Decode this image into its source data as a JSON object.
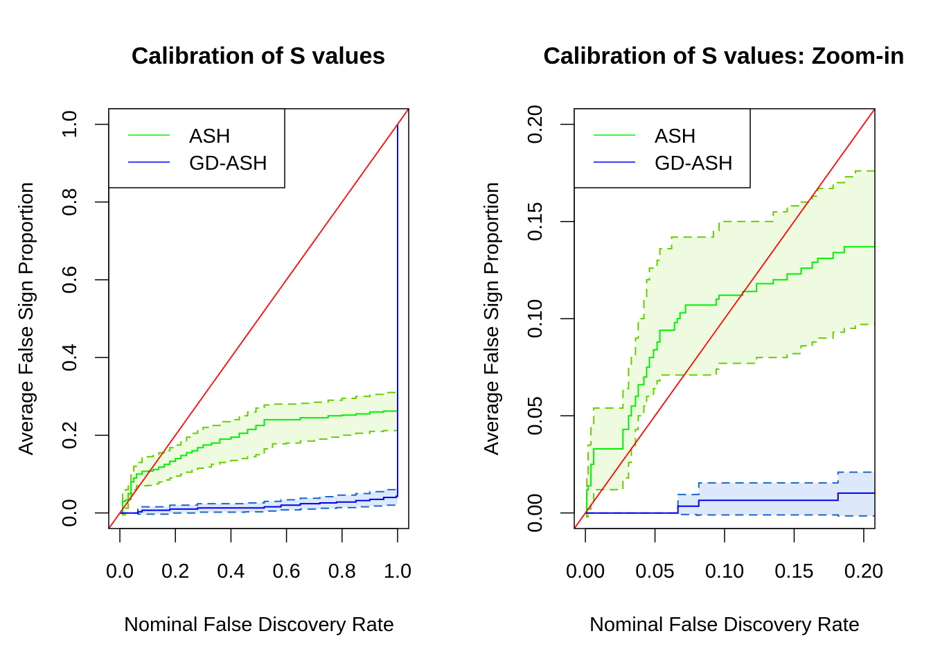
{
  "chart_data": [
    {
      "type": "line",
      "title": "Calibration of S values",
      "xlabel": "Nominal False Discovery Rate",
      "ylabel": "Average False Sign Proportion",
      "xlim": [
        -0.04,
        1.04
      ],
      "ylim": [
        -0.04,
        1.04
      ],
      "xticks": [
        0.0,
        0.2,
        0.4,
        0.6,
        0.8,
        1.0
      ],
      "xtick_labels": [
        "0.0",
        "0.2",
        "0.4",
        "0.6",
        "0.8",
        "1.0"
      ],
      "yticks": [
        0.0,
        0.2,
        0.4,
        0.6,
        0.8,
        1.0
      ],
      "ytick_labels": [
        "0.0",
        "0.2",
        "0.4",
        "0.6",
        "0.8",
        "1.0"
      ],
      "grid": false,
      "legend": {
        "position": "top-left",
        "entries": [
          {
            "label": "ASH",
            "color": "#00ee00"
          },
          {
            "label": "GD-ASH",
            "color": "#0000ee"
          }
        ]
      },
      "reference_line": {
        "label": "y = x",
        "color": "#ff0000"
      },
      "series": [
        {
          "name": "ASH",
          "color": "#00ee00",
          "band_color": "#66cc00",
          "fill_color": "#eefbe0",
          "x": [
            0.0,
            0.01,
            0.02,
            0.03,
            0.04,
            0.05,
            0.06,
            0.08,
            0.1,
            0.12,
            0.14,
            0.16,
            0.18,
            0.2,
            0.22,
            0.24,
            0.26,
            0.28,
            0.3,
            0.33,
            0.36,
            0.4,
            0.43,
            0.46,
            0.49,
            0.52,
            0.55,
            0.6,
            0.65,
            0.7,
            0.75,
            0.8,
            0.85,
            0.9,
            0.95,
            1.0
          ],
          "mean": [
            0.0,
            0.03,
            0.033,
            0.05,
            0.08,
            0.09,
            0.1,
            0.107,
            0.108,
            0.112,
            0.118,
            0.125,
            0.133,
            0.14,
            0.148,
            0.155,
            0.16,
            0.168,
            0.175,
            0.18,
            0.19,
            0.195,
            0.205,
            0.215,
            0.225,
            0.24,
            0.24,
            0.24,
            0.245,
            0.245,
            0.25,
            0.252,
            0.255,
            0.26,
            0.262,
            0.262
          ],
          "lower": [
            0.0,
            -0.005,
            0.012,
            0.025,
            0.05,
            0.06,
            0.07,
            0.07,
            0.071,
            0.075,
            0.08,
            0.085,
            0.09,
            0.095,
            0.1,
            0.105,
            0.11,
            0.115,
            0.118,
            0.125,
            0.13,
            0.135,
            0.14,
            0.145,
            0.15,
            0.165,
            0.178,
            0.18,
            0.185,
            0.19,
            0.195,
            0.2,
            0.205,
            0.21,
            0.212,
            0.212
          ],
          "upper": [
            0.0,
            0.055,
            0.06,
            0.08,
            0.1,
            0.12,
            0.13,
            0.142,
            0.145,
            0.15,
            0.155,
            0.16,
            0.168,
            0.175,
            0.185,
            0.195,
            0.205,
            0.215,
            0.22,
            0.225,
            0.235,
            0.24,
            0.25,
            0.26,
            0.27,
            0.278,
            0.28,
            0.28,
            0.282,
            0.285,
            0.29,
            0.295,
            0.3,
            0.305,
            0.31,
            0.31
          ]
        },
        {
          "name": "GD-ASH",
          "color": "#0000ee",
          "band_color": "#1a66cc",
          "fill_color": "#dde9fb",
          "x": [
            0.0,
            0.065,
            0.08,
            0.18,
            0.28,
            0.45,
            0.52,
            0.58,
            0.65,
            0.72,
            0.78,
            0.85,
            0.9,
            0.95,
            0.995,
            1.0
          ],
          "mean": [
            0.0,
            0.003,
            0.007,
            0.01,
            0.013,
            0.013,
            0.016,
            0.02,
            0.024,
            0.026,
            0.028,
            0.032,
            0.035,
            0.04,
            0.043,
            1.0
          ],
          "lower": [
            0.0,
            -0.003,
            -0.003,
            0.0,
            0.002,
            0.003,
            0.005,
            0.008,
            0.01,
            0.012,
            0.014,
            0.016,
            0.018,
            0.02,
            0.023,
            0.023
          ],
          "upper": [
            0.0,
            0.01,
            0.016,
            0.02,
            0.024,
            0.026,
            0.03,
            0.034,
            0.038,
            0.042,
            0.046,
            0.05,
            0.055,
            0.06,
            0.065,
            0.065
          ]
        }
      ]
    },
    {
      "type": "line",
      "title": "Calibration of S values: Zoom-in",
      "xlabel": "Nominal False Discovery Rate",
      "ylabel": "Average False Sign Proportion",
      "xlim": [
        -0.008,
        0.208
      ],
      "ylim": [
        -0.008,
        0.208
      ],
      "xticks": [
        0.0,
        0.05,
        0.1,
        0.15,
        0.2
      ],
      "xtick_labels": [
        "0.00",
        "0.05",
        "0.10",
        "0.15",
        "0.20"
      ],
      "yticks": [
        0.0,
        0.05,
        0.1,
        0.15,
        0.2
      ],
      "ytick_labels": [
        "0.00",
        "0.05",
        "0.10",
        "0.15",
        "0.20"
      ],
      "grid": false,
      "legend": {
        "position": "top-left",
        "entries": [
          {
            "label": "ASH",
            "color": "#00ee00"
          },
          {
            "label": "GD-ASH",
            "color": "#0000ee"
          }
        ]
      },
      "reference_line": {
        "label": "y = x",
        "color": "#ff0000"
      },
      "series": [
        {
          "name": "ASH",
          "color": "#00ee00",
          "band_color": "#66cc00",
          "fill_color": "#eefbe0",
          "x": [
            0.0,
            0.001,
            0.002,
            0.004,
            0.006,
            0.025,
            0.027,
            0.031,
            0.033,
            0.036,
            0.038,
            0.042,
            0.044,
            0.046,
            0.049,
            0.0515,
            0.0535,
            0.062,
            0.064,
            0.066,
            0.068,
            0.072,
            0.092,
            0.094,
            0.096,
            0.113,
            0.123,
            0.135,
            0.145,
            0.155,
            0.163,
            0.167,
            0.178,
            0.186,
            0.194,
            0.208
          ],
          "mean": [
            0.0,
            0.012,
            0.014,
            0.025,
            0.033,
            0.033,
            0.043,
            0.05,
            0.055,
            0.06,
            0.066,
            0.07,
            0.075,
            0.08,
            0.084,
            0.088,
            0.094,
            0.094,
            0.098,
            0.1,
            0.103,
            0.107,
            0.107,
            0.11,
            0.112,
            0.114,
            0.118,
            0.12,
            0.123,
            0.126,
            0.129,
            0.131,
            0.134,
            0.137,
            0.137,
            0.14
          ],
          "lower": [
            0.0,
            -0.002,
            0.002,
            0.005,
            0.012,
            0.012,
            0.018,
            0.026,
            0.034,
            0.043,
            0.05,
            0.055,
            0.06,
            0.06,
            0.064,
            0.068,
            0.071,
            0.071,
            0.071,
            0.071,
            0.071,
            0.071,
            0.071,
            0.074,
            0.077,
            0.077,
            0.08,
            0.08,
            0.082,
            0.086,
            0.088,
            0.09,
            0.093,
            0.095,
            0.097,
            0.098
          ],
          "upper": [
            0.0,
            0.02,
            0.035,
            0.045,
            0.054,
            0.054,
            0.064,
            0.075,
            0.08,
            0.09,
            0.1,
            0.11,
            0.12,
            0.126,
            0.126,
            0.13,
            0.136,
            0.142,
            0.142,
            0.142,
            0.142,
            0.142,
            0.145,
            0.145,
            0.15,
            0.15,
            0.15,
            0.155,
            0.158,
            0.16,
            0.163,
            0.167,
            0.17,
            0.173,
            0.176,
            0.18
          ]
        },
        {
          "name": "GD-ASH",
          "color": "#0000ee",
          "band_color": "#1a66cc",
          "fill_color": "#dde9fb",
          "x": [
            0.0,
            0.065,
            0.0665,
            0.08,
            0.0815,
            0.18,
            0.1815,
            0.208
          ],
          "mean": [
            0.0,
            0.0,
            0.0035,
            0.0035,
            0.0065,
            0.0065,
            0.0102,
            0.0102
          ],
          "lower": [
            0.0,
            0.0,
            -0.0008,
            -0.0012,
            -0.001,
            -0.001,
            -0.0015,
            -0.0015
          ],
          "upper": [
            0.0,
            0.0,
            0.0095,
            0.0095,
            0.0155,
            0.0155,
            0.021,
            0.021
          ]
        }
      ]
    }
  ]
}
